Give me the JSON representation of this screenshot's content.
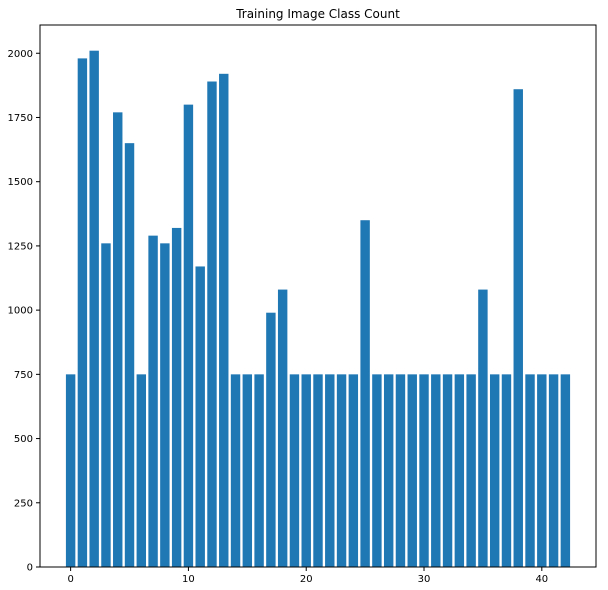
{
  "chart_data": {
    "type": "bar",
    "title": "Training Image Class Count",
    "xlabel": "",
    "ylabel": "",
    "x": [
      0,
      1,
      2,
      3,
      4,
      5,
      6,
      7,
      8,
      9,
      10,
      11,
      12,
      13,
      14,
      15,
      16,
      17,
      18,
      19,
      20,
      21,
      22,
      23,
      24,
      25,
      26,
      27,
      28,
      29,
      30,
      31,
      32,
      33,
      34,
      35,
      36,
      37,
      38,
      39,
      40,
      41,
      42
    ],
    "values": [
      750,
      1980,
      2010,
      1260,
      1770,
      1650,
      750,
      1290,
      1260,
      1320,
      1800,
      1170,
      1890,
      1920,
      750,
      750,
      750,
      990,
      1080,
      750,
      750,
      750,
      750,
      750,
      750,
      1350,
      750,
      750,
      750,
      750,
      750,
      750,
      750,
      750,
      750,
      1080,
      750,
      750,
      1860,
      750,
      750,
      750,
      750
    ],
    "xlim": [
      -2.6,
      44.6
    ],
    "ylim": [
      0,
      2110
    ],
    "xticks": [
      0,
      10,
      20,
      30,
      40
    ],
    "xtick_labels": [
      "0",
      "10",
      "20",
      "30",
      "40"
    ],
    "yticks": [
      0,
      250,
      500,
      750,
      1000,
      1250,
      1500,
      1750,
      2000
    ],
    "ytick_labels": [
      "0",
      "250",
      "500",
      "750",
      "1000",
      "1250",
      "1500",
      "1750",
      "2000"
    ],
    "bar_color": "#1f77b4",
    "grid": false,
    "legend": "none"
  }
}
